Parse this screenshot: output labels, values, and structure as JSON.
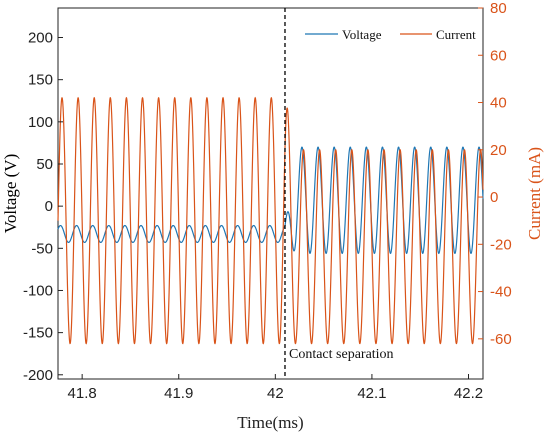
{
  "chart_data": {
    "type": "line",
    "title": "",
    "xlabel": "Time(ms)",
    "ylabel_left": "Voltage (V)",
    "ylabel_right": "Current (mA)",
    "xlim": [
      41.775,
      42.215
    ],
    "ylim_left": [
      -205,
      235
    ],
    "ylim_right": [
      -77,
      80
    ],
    "x_ticks": [
      "41.8",
      "41.9",
      "42",
      "42.1",
      "42.2"
    ],
    "y_left_ticks": [
      "-200",
      "-150",
      "-100",
      "-50",
      "0",
      "50",
      "100",
      "150",
      "200"
    ],
    "y_right_ticks": [
      "-60",
      "-40",
      "-20",
      "0",
      "20",
      "40",
      "60",
      "80"
    ],
    "grid": false,
    "legend_position": "top-right",
    "series": [
      {
        "name": "Voltage",
        "axis": "left",
        "color": "#1f77b4",
        "frequency_khz": 60,
        "before": {
          "offset": -33,
          "amplitude": 10
        },
        "after": {
          "offset": 7,
          "amplitude": 63
        }
      },
      {
        "name": "Current",
        "axis": "right",
        "color": "#d95319",
        "frequency_khz": 60,
        "before": {
          "offset": -10,
          "amplitude": 52
        },
        "after": {
          "offset": -21,
          "amplitude": 41
        }
      }
    ],
    "event": {
      "x": 42.01,
      "label": "Contact separation",
      "color": "#000000"
    }
  }
}
